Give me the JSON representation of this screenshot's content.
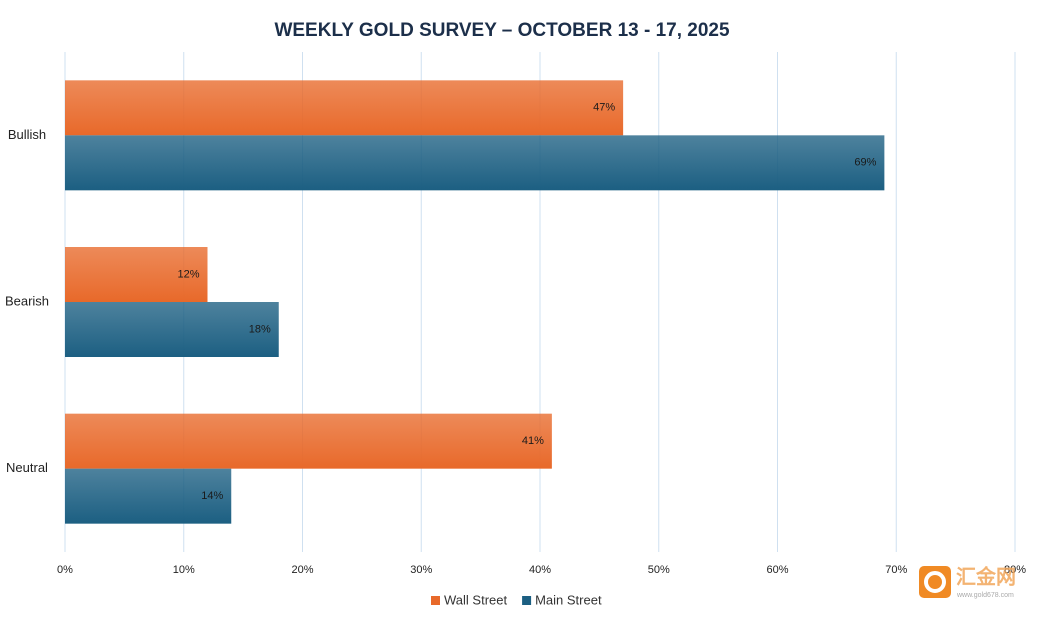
{
  "chart_data": {
    "type": "bar",
    "orientation": "horizontal",
    "title": "WEEKLY GOLD SURVEY – OCTOBER 13 - 17, 2025",
    "categories": [
      "Bullish",
      "Bearish",
      "Neutral"
    ],
    "series": [
      {
        "name": "Wall Street",
        "color": "#e8692a",
        "values": [
          47,
          12,
          41
        ],
        "value_labels": [
          "47%",
          "12%",
          "41%"
        ]
      },
      {
        "name": "Main Street",
        "color": "#1c5f82",
        "values": [
          69,
          18,
          14
        ],
        "value_labels": [
          "69%",
          "18%",
          "14%"
        ]
      }
    ],
    "xlim": [
      0,
      80
    ],
    "xticks": [
      {
        "value": 0,
        "label": "0%"
      },
      {
        "value": 10,
        "label": "10%"
      },
      {
        "value": 20,
        "label": "20%"
      },
      {
        "value": 30,
        "label": "30%"
      },
      {
        "value": 40,
        "label": "40%"
      },
      {
        "value": 50,
        "label": "50%"
      },
      {
        "value": 60,
        "label": "60%"
      },
      {
        "value": 70,
        "label": "70%"
      },
      {
        "value": 80,
        "label": "80%"
      }
    ],
    "grid": true,
    "legend": "bottom"
  },
  "watermark": {
    "text": "汇金网",
    "url": "www.gold678.com"
  }
}
